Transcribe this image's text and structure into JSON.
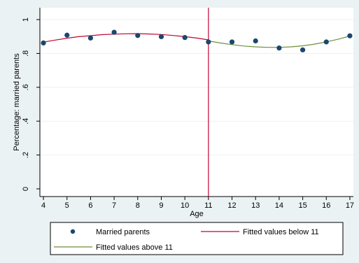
{
  "chart_data": {
    "type": "scatter",
    "title": "",
    "xlabel": "Age",
    "ylabel": "Percentage: married parents",
    "xlim": [
      3.85,
      17.15
    ],
    "ylim": [
      0,
      1
    ],
    "x_ticks": [
      4,
      5,
      6,
      7,
      8,
      9,
      10,
      11,
      12,
      13,
      14,
      15,
      16,
      17
    ],
    "x_tick_labels": [
      "4",
      "5",
      "6",
      "7",
      "8",
      "9",
      "10",
      "11",
      "12",
      "13",
      "14",
      "15",
      "16",
      "17"
    ],
    "y_ticks": [
      0,
      0.2,
      0.4,
      0.6,
      0.8,
      1
    ],
    "y_tick_labels": [
      "0",
      ".2",
      ".4",
      ".6",
      ".8",
      "1"
    ],
    "grid": "horizontal",
    "cutoff": 11,
    "series": [
      {
        "name": "Married parents",
        "kind": "scatter",
        "color": "#1a476f",
        "x": [
          4,
          5,
          6,
          7,
          8,
          9,
          10,
          11,
          12,
          13,
          14,
          15,
          16,
          17
        ],
        "y": [
          0.862,
          0.908,
          0.891,
          0.925,
          0.906,
          0.899,
          0.894,
          0.868,
          0.868,
          0.874,
          0.832,
          0.821,
          0.868,
          0.904
        ]
      },
      {
        "name": "Fitted values below 11",
        "kind": "line",
        "color": "#c10534",
        "x": [
          4,
          4.5,
          5,
          5.5,
          6,
          6.5,
          7,
          7.5,
          8,
          8.5,
          9,
          9.5,
          10,
          10.5,
          11
        ],
        "y": [
          0.867,
          0.879,
          0.89,
          0.899,
          0.905,
          0.911,
          0.914,
          0.916,
          0.917,
          0.915,
          0.912,
          0.906,
          0.899,
          0.891,
          0.88
        ]
      },
      {
        "name": "Fitted values above 11",
        "kind": "line",
        "color": "#6e8e3c",
        "x": [
          11,
          11.5,
          12,
          12.5,
          13,
          13.5,
          14,
          14.5,
          15,
          15.5,
          16,
          16.5,
          17
        ],
        "y": [
          0.874,
          0.862,
          0.852,
          0.844,
          0.839,
          0.836,
          0.836,
          0.839,
          0.845,
          0.855,
          0.868,
          0.884,
          0.903
        ]
      }
    ],
    "legend": {
      "position": "bottom",
      "items": [
        "Married parents",
        "Fitted values below 11",
        "Fitted values above 11"
      ]
    },
    "colors": {
      "background": "#eaf2f3",
      "plot_background": "#ffffff",
      "gridline": "#eaf2f3",
      "cutoff_line": "#c10534"
    }
  }
}
